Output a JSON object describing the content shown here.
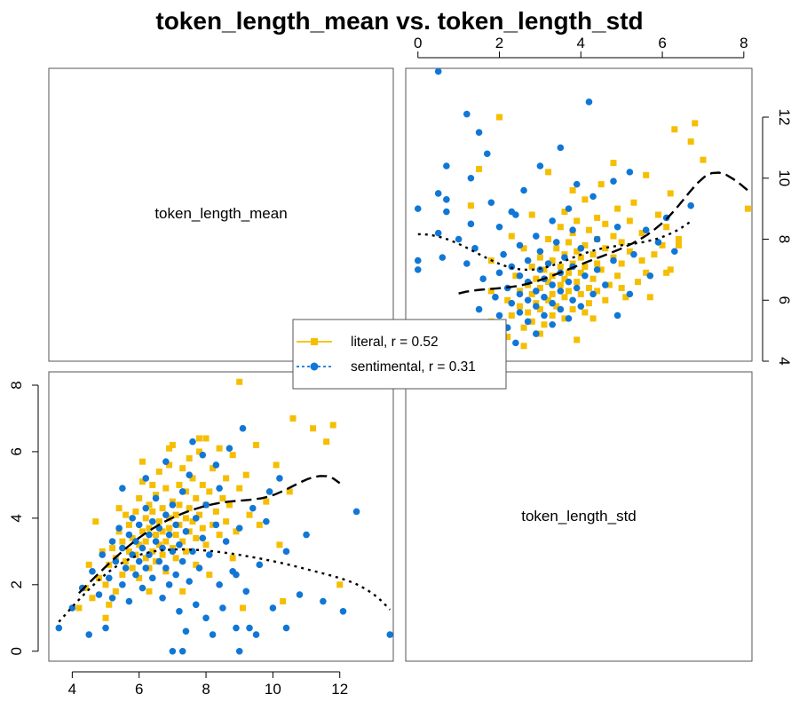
{
  "chart_data": {
    "type": "scatter",
    "title": "token_length_mean vs. token_length_std",
    "variables": [
      "token_length_mean",
      "token_length_std"
    ],
    "legend": {
      "placement": "center",
      "entries": [
        {
          "label": "literal, r = 0.52",
          "color": "#F5BE00",
          "marker": "square",
          "line": "dashed"
        },
        {
          "label": "sentimental, r = 0.31",
          "color": "#1177D6",
          "marker": "circle",
          "line": "dotted"
        }
      ]
    },
    "panels": [
      {
        "position": "top-right",
        "x_variable": "token_length_std",
        "y_variable": "token_length_mean",
        "xlim": [
          -0.3,
          8.2
        ],
        "ylim": [
          4,
          13.6
        ],
        "x_ticks": [
          0,
          2,
          4,
          6,
          8
        ],
        "y_ticks": [
          4,
          6,
          8,
          10,
          12
        ],
        "x_axis_side": "top",
        "y_axis_side": "right"
      },
      {
        "position": "bottom-left",
        "x_variable": "token_length_mean",
        "y_variable": "token_length_std",
        "xlim": [
          3.3,
          13.6
        ],
        "ylim": [
          -0.3,
          8.4
        ],
        "x_ticks": [
          4,
          6,
          8,
          10,
          12
        ],
        "y_ticks": [
          0,
          2,
          4,
          6,
          8
        ],
        "x_axis_side": "bottom",
        "y_axis_side": "left"
      }
    ],
    "diagonal_labels": {
      "top_left": "token_length_mean",
      "bottom_right": "token_length_std"
    },
    "series": [
      {
        "name": "literal",
        "color": "#F5BE00",
        "marker": "square",
        "smoother": "dashed",
        "r": 0.52,
        "points_mean_std": [
          [
            4.2,
            1.3
          ],
          [
            4.4,
            1.9
          ],
          [
            4.5,
            2.6
          ],
          [
            4.6,
            1.6
          ],
          [
            4.8,
            2.2
          ],
          [
            4.9,
            3.0
          ],
          [
            5.0,
            1.0
          ],
          [
            5.0,
            2.0
          ],
          [
            5.1,
            2.6
          ],
          [
            5.2,
            3.1
          ],
          [
            5.3,
            1.8
          ],
          [
            5.3,
            2.8
          ],
          [
            5.4,
            3.6
          ],
          [
            5.5,
            2.3
          ],
          [
            5.5,
            3.3
          ],
          [
            5.6,
            2.7
          ],
          [
            5.6,
            4.1
          ],
          [
            5.7,
            3.0
          ],
          [
            5.7,
            3.8
          ],
          [
            5.8,
            2.5
          ],
          [
            5.8,
            3.4
          ],
          [
            5.9,
            4.2
          ],
          [
            5.9,
            2.9
          ],
          [
            6.0,
            3.2
          ],
          [
            6.0,
            4.6
          ],
          [
            6.0,
            2.2
          ],
          [
            6.1,
            3.6
          ],
          [
            6.1,
            5.1
          ],
          [
            6.2,
            2.8
          ],
          [
            6.2,
            4.0
          ],
          [
            6.2,
            3.3
          ],
          [
            6.3,
            4.4
          ],
          [
            6.3,
            2.5
          ],
          [
            6.3,
            3.7
          ],
          [
            6.4,
            5.0
          ],
          [
            6.4,
            3.0
          ],
          [
            6.4,
            4.2
          ],
          [
            6.5,
            3.5
          ],
          [
            6.5,
            2.7
          ],
          [
            6.5,
            4.7
          ],
          [
            6.6,
            3.9
          ],
          [
            6.6,
            3.2
          ],
          [
            6.6,
            5.4
          ],
          [
            6.7,
            2.9
          ],
          [
            6.7,
            4.3
          ],
          [
            6.7,
            3.6
          ],
          [
            6.8,
            4.9
          ],
          [
            6.8,
            3.3
          ],
          [
            6.8,
            2.4
          ],
          [
            6.9,
            4.0
          ],
          [
            6.9,
            5.6
          ],
          [
            6.9,
            3.7
          ],
          [
            7.0,
            3.1
          ],
          [
            7.0,
            4.5
          ],
          [
            7.0,
            6.2
          ],
          [
            7.1,
            3.5
          ],
          [
            7.1,
            4.1
          ],
          [
            7.1,
            2.8
          ],
          [
            7.2,
            5.0
          ],
          [
            7.2,
            3.8
          ],
          [
            7.2,
            4.4
          ],
          [
            7.3,
            3.3
          ],
          [
            7.3,
            5.5
          ],
          [
            7.4,
            4.0
          ],
          [
            7.4,
            3.0
          ],
          [
            7.4,
            4.8
          ],
          [
            7.5,
            3.6
          ],
          [
            7.5,
            5.8
          ],
          [
            7.5,
            4.3
          ],
          [
            7.6,
            3.9
          ],
          [
            7.6,
            5.2
          ],
          [
            7.7,
            3.4
          ],
          [
            7.7,
            4.6
          ],
          [
            7.8,
            4.1
          ],
          [
            7.8,
            6.0
          ],
          [
            7.9,
            3.7
          ],
          [
            7.9,
            5.0
          ],
          [
            8.0,
            4.4
          ],
          [
            8.0,
            3.2
          ],
          [
            8.0,
            6.4
          ],
          [
            8.1,
            4.8
          ],
          [
            8.2,
            3.8
          ],
          [
            8.2,
            5.5
          ],
          [
            8.3,
            4.2
          ],
          [
            8.4,
            3.5
          ],
          [
            8.4,
            6.1
          ],
          [
            8.5,
            4.6
          ],
          [
            8.6,
            5.2
          ],
          [
            8.6,
            3.9
          ],
          [
            8.7,
            4.4
          ],
          [
            8.8,
            5.9
          ],
          [
            8.9,
            3.6
          ],
          [
            9.0,
            8.1
          ],
          [
            9.0,
            4.9
          ],
          [
            9.2,
            5.3
          ],
          [
            9.3,
            4.1
          ],
          [
            9.5,
            6.2
          ],
          [
            9.6,
            3.8
          ],
          [
            9.8,
            4.5
          ],
          [
            10.1,
            5.6
          ],
          [
            10.3,
            1.5
          ],
          [
            10.5,
            4.8
          ],
          [
            10.6,
            7.0
          ],
          [
            11.2,
            6.7
          ],
          [
            11.6,
            6.3
          ],
          [
            11.8,
            6.8
          ],
          [
            12.0,
            2.0
          ],
          [
            7.3,
            1.8
          ],
          [
            8.1,
            2.3
          ],
          [
            6.1,
            5.7
          ],
          [
            5.4,
            4.3
          ],
          [
            6.9,
            6.1
          ],
          [
            7.8,
            6.4
          ],
          [
            9.1,
            1.3
          ],
          [
            4.7,
            3.9
          ],
          [
            5.1,
            1.4
          ],
          [
            6.3,
            1.8
          ],
          [
            7.7,
            2.6
          ],
          [
            8.8,
            2.8
          ],
          [
            10.2,
            3.2
          ]
        ]
      },
      {
        "name": "sentimental",
        "color": "#1177D6",
        "marker": "circle",
        "smoother": "dotted",
        "r": 0.31,
        "points_mean_std": [
          [
            3.6,
            0.7
          ],
          [
            4.0,
            1.3
          ],
          [
            4.3,
            1.9
          ],
          [
            4.5,
            0.5
          ],
          [
            4.6,
            2.4
          ],
          [
            4.8,
            1.7
          ],
          [
            4.9,
            2.9
          ],
          [
            5.0,
            0.7
          ],
          [
            5.1,
            2.2
          ],
          [
            5.2,
            3.3
          ],
          [
            5.2,
            1.6
          ],
          [
            5.3,
            2.7
          ],
          [
            5.4,
            3.7
          ],
          [
            5.5,
            2.0
          ],
          [
            5.5,
            3.1
          ],
          [
            5.6,
            2.5
          ],
          [
            5.7,
            3.5
          ],
          [
            5.7,
            1.5
          ],
          [
            5.8,
            2.9
          ],
          [
            5.8,
            4.0
          ],
          [
            5.9,
            2.3
          ],
          [
            5.9,
            3.3
          ],
          [
            6.0,
            2.7
          ],
          [
            6.0,
            3.8
          ],
          [
            6.1,
            1.9
          ],
          [
            6.1,
            3.1
          ],
          [
            6.2,
            4.3
          ],
          [
            6.2,
            2.5
          ],
          [
            6.3,
            3.5
          ],
          [
            6.3,
            2.9
          ],
          [
            6.4,
            3.9
          ],
          [
            6.4,
            2.2
          ],
          [
            6.5,
            3.3
          ],
          [
            6.5,
            4.6
          ],
          [
            6.6,
            2.7
          ],
          [
            6.6,
            3.7
          ],
          [
            6.7,
            3.1
          ],
          [
            6.7,
            1.6
          ],
          [
            6.8,
            4.1
          ],
          [
            6.8,
            2.5
          ],
          [
            6.9,
            3.5
          ],
          [
            6.9,
            2.0
          ],
          [
            7.0,
            0.0
          ],
          [
            7.0,
            3.0
          ],
          [
            7.0,
            4.4
          ],
          [
            7.1,
            2.3
          ],
          [
            7.1,
            3.8
          ],
          [
            7.2,
            1.2
          ],
          [
            7.2,
            3.2
          ],
          [
            7.3,
            4.8
          ],
          [
            7.3,
            2.7
          ],
          [
            7.4,
            0.6
          ],
          [
            7.4,
            3.6
          ],
          [
            7.5,
            2.1
          ],
          [
            7.5,
            5.3
          ],
          [
            7.6,
            3.0
          ],
          [
            7.7,
            1.4
          ],
          [
            7.7,
            4.0
          ],
          [
            7.8,
            2.5
          ],
          [
            7.9,
            5.9
          ],
          [
            7.9,
            3.4
          ],
          [
            8.0,
            1.0
          ],
          [
            8.0,
            4.4
          ],
          [
            8.1,
            2.9
          ],
          [
            8.2,
            0.5
          ],
          [
            8.3,
            3.8
          ],
          [
            8.4,
            2.0
          ],
          [
            8.4,
            4.9
          ],
          [
            8.5,
            1.3
          ],
          [
            8.6,
            3.3
          ],
          [
            8.7,
            6.1
          ],
          [
            8.8,
            2.4
          ],
          [
            8.9,
            0.7
          ],
          [
            9.0,
            3.7
          ],
          [
            9.0,
            0.0
          ],
          [
            9.1,
            6.7
          ],
          [
            9.2,
            1.8
          ],
          [
            9.4,
            4.3
          ],
          [
            9.5,
            0.5
          ],
          [
            9.6,
            2.6
          ],
          [
            9.8,
            3.9
          ],
          [
            10.0,
            1.3
          ],
          [
            10.2,
            5.2
          ],
          [
            10.4,
            0.7
          ],
          [
            10.8,
            1.7
          ],
          [
            11.0,
            3.5
          ],
          [
            11.5,
            1.5
          ],
          [
            12.1,
            1.2
          ],
          [
            12.5,
            4.2
          ],
          [
            13.5,
            0.5
          ],
          [
            6.2,
            5.2
          ],
          [
            5.5,
            4.9
          ],
          [
            8.3,
            5.6
          ],
          [
            7.6,
            6.3
          ],
          [
            9.9,
            4.8
          ],
          [
            6.8,
            5.7
          ],
          [
            10.4,
            3.0
          ],
          [
            8.9,
            2.3
          ],
          [
            7.3,
            0.0
          ],
          [
            9.3,
            0.7
          ]
        ]
      }
    ]
  }
}
